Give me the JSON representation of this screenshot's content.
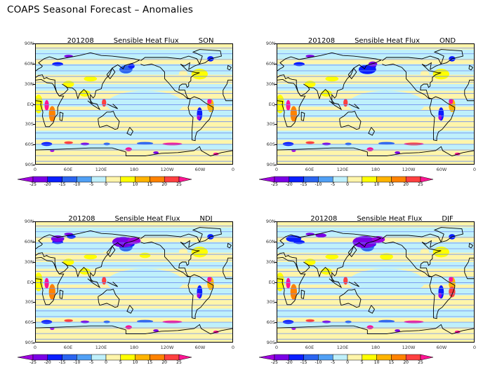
{
  "title": "COAPS Seasonal Forecast – Anomalies",
  "panels": [
    {
      "date": "201208",
      "variable": "Sensible Heat Flux",
      "season": "SON"
    },
    {
      "date": "201208",
      "variable": "Sensible Heat Flux",
      "season": "OND"
    },
    {
      "date": "201208",
      "variable": "Sensible Heat Flux",
      "season": "NDJ"
    },
    {
      "date": "201208",
      "variable": "Sensible Heat Flux",
      "season": "DJF"
    }
  ],
  "lat_labels": [
    "90N",
    "60N",
    "30N",
    "EQ",
    "30S",
    "60S",
    "90S"
  ],
  "lon_labels": [
    "0",
    "60E",
    "120E",
    "180",
    "120W",
    "60W",
    "0"
  ],
  "colorbar": {
    "ticks": [
      "-25",
      "-20",
      "-15",
      "-10",
      "-5",
      "0",
      "5",
      "10",
      "15",
      "20",
      "25"
    ],
    "colors": [
      "#a000e0",
      "#7a00e6",
      "#0a1eff",
      "#2a64f0",
      "#50a0f5",
      "#bff0fb",
      "#fff5aa",
      "#ffff00",
      "#ffb400",
      "#ff8200",
      "#ff4040",
      "#ff1493"
    ]
  }
}
